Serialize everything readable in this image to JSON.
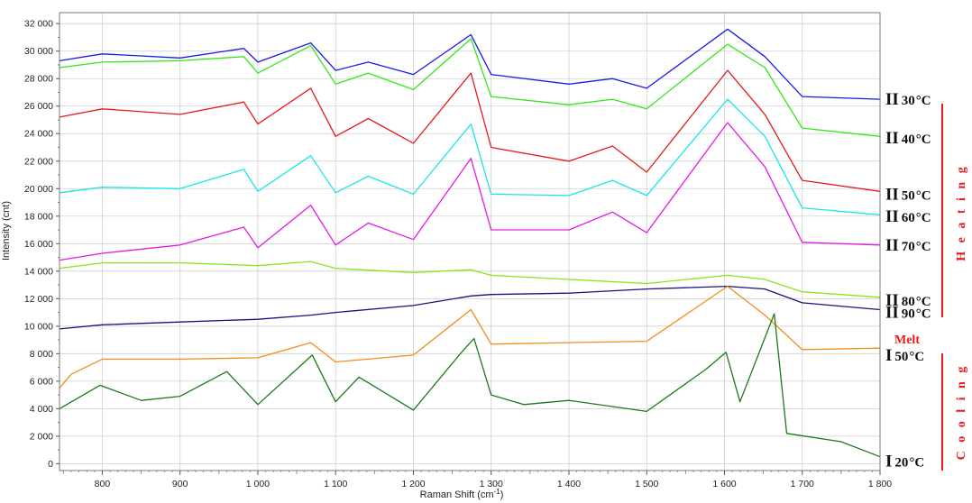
{
  "chart_data": {
    "type": "line",
    "xlabel": "Raman Shift (cm",
    "xlabel_sup": "-1",
    "xlabel_close": ")",
    "ylabel": "Intensity (cnt)",
    "xlim": [
      745,
      1800
    ],
    "ylim": [
      -500,
      32800
    ],
    "grid": true,
    "x_ticks": [
      800,
      900,
      1000,
      1100,
      1200,
      1300,
      1400,
      1500,
      1600,
      1700,
      1800
    ],
    "x_tick_labels": [
      "800",
      "900",
      "1 000",
      "1 100",
      "1 200",
      "1 300",
      "1 400",
      "1 500",
      "1 600",
      "1 700",
      "1 800"
    ],
    "y_ticks": [
      0,
      2000,
      4000,
      6000,
      8000,
      10000,
      12000,
      14000,
      16000,
      18000,
      20000,
      22000,
      24000,
      26000,
      28000,
      30000,
      32000
    ],
    "y_tick_labels": [
      "0",
      "2 000",
      "4 000",
      "6 000",
      "8 000",
      "10 000",
      "12 000",
      "14 000",
      "16 000",
      "18 000",
      "20 000",
      "22 000",
      "24 000",
      "26 000",
      "28 000",
      "30 000",
      "32 000"
    ],
    "series": [
      {
        "roman": "II",
        "temp": "30",
        "unit": "°C",
        "color": "#1a1ae6",
        "label_y": 26500,
        "x": [
          745,
          800,
          900,
          982,
          1000,
          1068,
          1100,
          1142,
          1200,
          1274,
          1300,
          1400,
          1456,
          1500,
          1604,
          1652,
          1700,
          1800
        ],
        "y": [
          29300,
          29800,
          29500,
          30200,
          29200,
          30600,
          28600,
          29200,
          28300,
          31200,
          28300,
          27600,
          28000,
          27300,
          31600,
          29600,
          26700,
          26500
        ]
      },
      {
        "roman": "II",
        "temp": "40",
        "unit": "°C",
        "color": "#33e61a",
        "label_y": 23700,
        "x": [
          745,
          800,
          900,
          982,
          1000,
          1068,
          1100,
          1142,
          1200,
          1274,
          1300,
          1400,
          1456,
          1500,
          1604,
          1652,
          1700,
          1800
        ],
        "y": [
          28800,
          29200,
          29300,
          29600,
          28400,
          30400,
          27600,
          28400,
          27200,
          30900,
          26700,
          26100,
          26500,
          25800,
          30500,
          28800,
          24400,
          23800
        ]
      },
      {
        "roman": "II",
        "temp": "50",
        "unit": "°C",
        "color": "#e61a1a",
        "label_y": 19600,
        "x": [
          745,
          800,
          900,
          982,
          1000,
          1068,
          1100,
          1142,
          1200,
          1274,
          1300,
          1400,
          1456,
          1500,
          1604,
          1652,
          1700,
          1800
        ],
        "y": [
          25200,
          25800,
          25400,
          26300,
          24700,
          27300,
          23800,
          25100,
          23300,
          28400,
          23000,
          22000,
          23100,
          21200,
          28600,
          25400,
          20600,
          19800
        ]
      },
      {
        "roman": "II",
        "temp": "60",
        "unit": "°C",
        "color": "#1ae6e6",
        "label_y": 18000,
        "x": [
          745,
          800,
          900,
          982,
          1000,
          1068,
          1100,
          1142,
          1200,
          1274,
          1300,
          1400,
          1456,
          1500,
          1604,
          1652,
          1700,
          1800
        ],
        "y": [
          19700,
          20100,
          20000,
          21400,
          19800,
          22400,
          19700,
          20900,
          19600,
          24700,
          19600,
          19500,
          20600,
          19500,
          26500,
          23800,
          18600,
          18100
        ]
      },
      {
        "roman": "II",
        "temp": "70",
        "unit": "°C",
        "color": "#e61ae6",
        "label_y": 15900,
        "x": [
          745,
          800,
          900,
          982,
          1000,
          1068,
          1100,
          1142,
          1200,
          1274,
          1300,
          1400,
          1456,
          1500,
          1604,
          1652,
          1700,
          1800
        ],
        "y": [
          14800,
          15300,
          15900,
          17200,
          15700,
          18800,
          15900,
          17500,
          16300,
          22200,
          17000,
          17000,
          18300,
          16800,
          24800,
          21600,
          16100,
          15900
        ]
      },
      {
        "roman": "II",
        "temp": "80",
        "unit": "°C",
        "color": "#8ae61a",
        "label_y": 11900,
        "x": [
          745,
          800,
          900,
          1000,
          1068,
          1100,
          1200,
          1274,
          1300,
          1400,
          1500,
          1604,
          1652,
          1700,
          1800
        ],
        "y": [
          14200,
          14600,
          14600,
          14400,
          14700,
          14200,
          13900,
          14100,
          13700,
          13400,
          13100,
          13700,
          13400,
          12500,
          12100
        ]
      },
      {
        "roman": "II",
        "temp": "90",
        "unit": "°C",
        "color": "#14147a",
        "label_y": 11000,
        "x": [
          745,
          800,
          900,
          1000,
          1068,
          1100,
          1200,
          1274,
          1300,
          1400,
          1500,
          1604,
          1652,
          1700,
          1800
        ],
        "y": [
          9800,
          10100,
          10300,
          10500,
          10800,
          11000,
          11500,
          12200,
          12300,
          12400,
          12700,
          12900,
          12700,
          11700,
          11200
        ]
      },
      {
        "roman": "I",
        "temp": "50",
        "unit": "°C",
        "color": "#f28c1a",
        "label_y": 7900,
        "x": [
          745,
          760,
          800,
          900,
          1000,
          1068,
          1100,
          1200,
          1274,
          1300,
          1400,
          1500,
          1604,
          1652,
          1700,
          1800
        ],
        "y": [
          5500,
          6500,
          7600,
          7600,
          7700,
          8800,
          7400,
          7900,
          11200,
          8700,
          8800,
          8900,
          12900,
          10800,
          8300,
          8400
        ]
      },
      {
        "roman": "I",
        "temp": "20",
        "unit": "°C",
        "color": "#1a7a1a",
        "label_y": 200,
        "x": [
          745,
          797,
          850,
          900,
          960,
          1000,
          1070,
          1100,
          1130,
          1200,
          1262,
          1278,
          1300,
          1342,
          1400,
          1500,
          1577,
          1602,
          1620,
          1664,
          1680,
          1750,
          1800
        ],
        "y": [
          4000,
          5700,
          4600,
          4900,
          6700,
          4300,
          7900,
          4500,
          6300,
          3900,
          8100,
          9100,
          5000,
          4300,
          4600,
          3800,
          6900,
          8100,
          4500,
          10900,
          2200,
          1600,
          500
        ]
      }
    ],
    "annotations": {
      "heating": "H e a t i n g",
      "melt": "Melt",
      "cooling": "C o o l i n g",
      "bracket_color": "#e61a1a"
    }
  }
}
